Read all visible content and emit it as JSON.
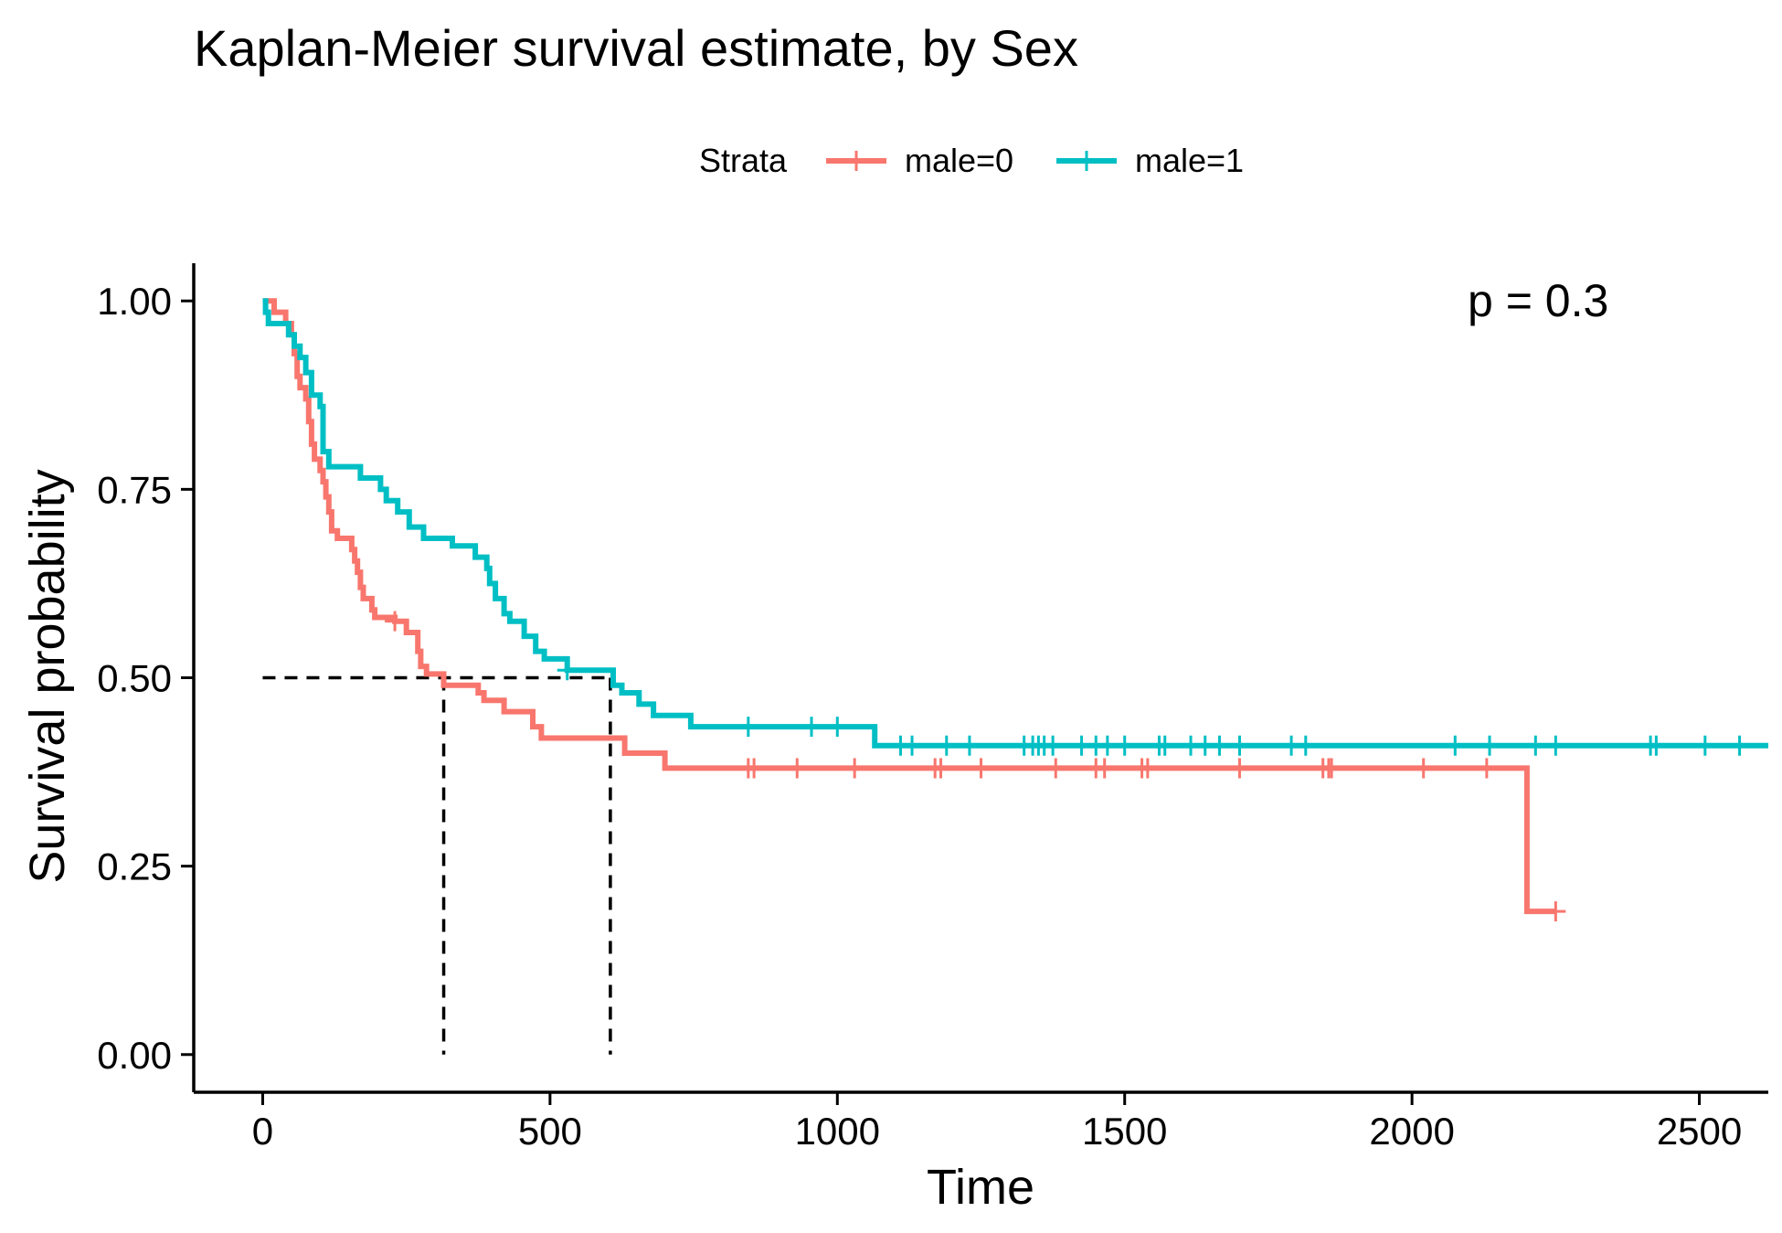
{
  "chart_data": {
    "type": "line",
    "subtype": "kaplan-meier step",
    "title": "Kaplan-Meier survival estimate, by Sex",
    "xlabel": "Time",
    "ylabel": "Survival probability",
    "xlim": [
      -120,
      2620
    ],
    "ylim": [
      -0.05,
      1.05
    ],
    "x_ticks": [
      0,
      500,
      1000,
      1500,
      2000,
      2500
    ],
    "x_tick_labels": [
      "0",
      "500",
      "1000",
      "1500",
      "2000",
      "2500"
    ],
    "y_ticks": [
      0,
      0.25,
      0.5,
      0.75,
      1.0
    ],
    "y_tick_labels": [
      "0.00",
      "0.25",
      "0.50",
      "0.75",
      "1.00"
    ],
    "grid": false,
    "legend": {
      "title": "Strata",
      "position": "top"
    },
    "annotation": "p = 0.3",
    "median_lines": {
      "y": 0.5,
      "x": [
        315,
        605
      ]
    },
    "series": [
      {
        "name": "male=0",
        "color": "#F8766D",
        "steps": [
          [
            0,
            1.0
          ],
          [
            20,
            0.985
          ],
          [
            40,
            0.97
          ],
          [
            50,
            0.955
          ],
          [
            55,
            0.93
          ],
          [
            60,
            0.9
          ],
          [
            65,
            0.885
          ],
          [
            75,
            0.87
          ],
          [
            80,
            0.84
          ],
          [
            85,
            0.81
          ],
          [
            90,
            0.79
          ],
          [
            100,
            0.775
          ],
          [
            105,
            0.76
          ],
          [
            110,
            0.74
          ],
          [
            115,
            0.72
          ],
          [
            120,
            0.695
          ],
          [
            130,
            0.685
          ],
          [
            155,
            0.67
          ],
          [
            160,
            0.655
          ],
          [
            165,
            0.64
          ],
          [
            170,
            0.62
          ],
          [
            175,
            0.605
          ],
          [
            190,
            0.59
          ],
          [
            195,
            0.58
          ],
          [
            230,
            0.575
          ],
          [
            250,
            0.56
          ],
          [
            270,
            0.535
          ],
          [
            275,
            0.515
          ],
          [
            285,
            0.505
          ],
          [
            315,
            0.49
          ],
          [
            375,
            0.48
          ],
          [
            385,
            0.47
          ],
          [
            420,
            0.455
          ],
          [
            470,
            0.435
          ],
          [
            485,
            0.42
          ],
          [
            630,
            0.4
          ],
          [
            700,
            0.38
          ],
          [
            2200,
            0.19
          ],
          [
            2250,
            0.19
          ]
        ],
        "censor_times": [
          230,
          845,
          855,
          930,
          1030,
          1170,
          1180,
          1250,
          1380,
          1450,
          1465,
          1530,
          1540,
          1700,
          1845,
          1855,
          1860,
          2020,
          2130,
          2250
        ]
      },
      {
        "name": "male=1",
        "color": "#00BFC4",
        "steps": [
          [
            0,
            1.0
          ],
          [
            5,
            0.985
          ],
          [
            10,
            0.97
          ],
          [
            45,
            0.955
          ],
          [
            55,
            0.94
          ],
          [
            65,
            0.925
          ],
          [
            75,
            0.905
          ],
          [
            85,
            0.875
          ],
          [
            100,
            0.86
          ],
          [
            105,
            0.8
          ],
          [
            115,
            0.78
          ],
          [
            170,
            0.765
          ],
          [
            205,
            0.75
          ],
          [
            215,
            0.735
          ],
          [
            235,
            0.72
          ],
          [
            255,
            0.7
          ],
          [
            280,
            0.685
          ],
          [
            330,
            0.675
          ],
          [
            370,
            0.66
          ],
          [
            390,
            0.645
          ],
          [
            395,
            0.625
          ],
          [
            405,
            0.605
          ],
          [
            420,
            0.585
          ],
          [
            430,
            0.575
          ],
          [
            455,
            0.555
          ],
          [
            475,
            0.535
          ],
          [
            490,
            0.525
          ],
          [
            530,
            0.51
          ],
          [
            610,
            0.49
          ],
          [
            625,
            0.48
          ],
          [
            655,
            0.465
          ],
          [
            680,
            0.45
          ],
          [
            745,
            0.435
          ],
          [
            1065,
            0.41
          ],
          [
            2620,
            0.41
          ]
        ],
        "censor_times": [
          530,
          845,
          955,
          1000,
          1110,
          1130,
          1190,
          1230,
          1325,
          1340,
          1350,
          1360,
          1375,
          1425,
          1450,
          1470,
          1500,
          1560,
          1570,
          1615,
          1640,
          1665,
          1700,
          1790,
          1815,
          2075,
          2135,
          2215,
          2250,
          2415,
          2425,
          2510,
          2570
        ]
      }
    ]
  }
}
